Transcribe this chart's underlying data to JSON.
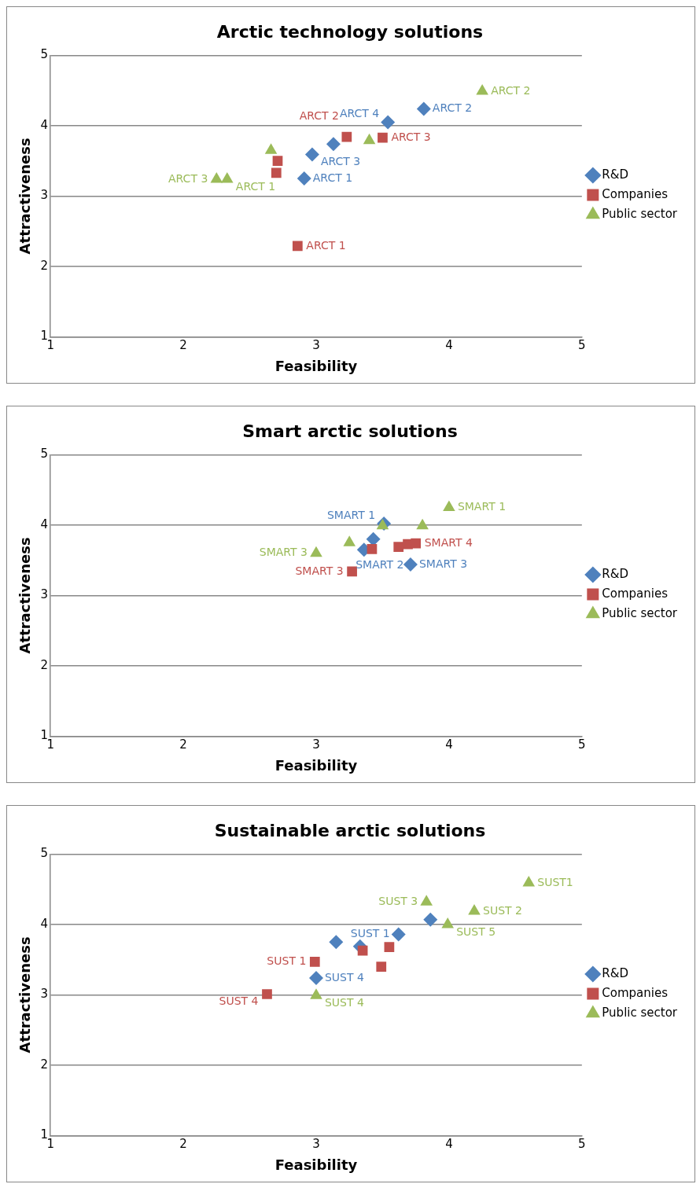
{
  "chart_data": [
    {
      "type": "scatter",
      "title": "Arctic technology solutions",
      "xlabel": "Feasibility",
      "ylabel": "Attractiveness",
      "xlim": [
        1,
        5
      ],
      "xticks": [
        1,
        2,
        3,
        4,
        5
      ],
      "ylim": [
        1,
        5
      ],
      "yticks": [
        1,
        2,
        3,
        4,
        5
      ],
      "grid": "y",
      "legend": "right",
      "series": [
        {
          "name": "R&D",
          "color": "#4f81bd",
          "marker": "diamond",
          "x": [
            3.81,
            3.54,
            3.13,
            2.97,
            2.91
          ],
          "values": [
            4.24,
            4.05,
            3.74,
            3.59,
            3.25
          ],
          "value_labels": [
            "ARCT 2",
            "ARCT 4",
            null,
            "ARCT 3",
            "ARCT 1"
          ]
        },
        {
          "name": "Companies",
          "color": "#c0504d",
          "marker": "square",
          "x": [
            3.23,
            3.5,
            2.71,
            2.7,
            2.86
          ],
          "values": [
            3.84,
            3.83,
            3.5,
            3.33,
            2.29
          ],
          "value_labels": [
            "ARCT 2",
            "ARCT 3",
            null,
            null,
            "ARCT 1"
          ]
        },
        {
          "name": "Public sector",
          "color": "#9bbb59",
          "marker": "triangle",
          "x": [
            4.25,
            2.66,
            3.4,
            2.25,
            2.33
          ],
          "values": [
            4.49,
            3.65,
            3.79,
            3.24,
            3.24
          ],
          "value_labels": [
            "ARCT 2",
            null,
            null,
            "ARCT 3",
            "ARCT 1"
          ]
        }
      ]
    },
    {
      "type": "scatter",
      "title": "Smart arctic solutions",
      "xlabel": "Feasibility",
      "ylabel": "Attractiveness",
      "xlim": [
        1,
        5
      ],
      "xticks": [
        1,
        2,
        3,
        4,
        5
      ],
      "ylim": [
        1,
        5
      ],
      "yticks": [
        1,
        2,
        3,
        4,
        5
      ],
      "grid": "y",
      "legend": "right",
      "series": [
        {
          "name": "R&D",
          "color": "#4f81bd",
          "marker": "diamond",
          "x": [
            3.51,
            3.43,
            3.36,
            3.71
          ],
          "values": [
            4.02,
            3.8,
            3.65,
            3.44
          ],
          "value_labels": [
            "SMART 1",
            null,
            "SMART 2",
            "SMART 3"
          ]
        },
        {
          "name": "Companies",
          "color": "#c0504d",
          "marker": "square",
          "x": [
            3.42,
            3.62,
            3.69,
            3.75,
            3.27
          ],
          "values": [
            3.66,
            3.69,
            3.73,
            3.74,
            3.34
          ],
          "value_labels": [
            null,
            null,
            null,
            "SMART 4",
            "SMART 3"
          ]
        },
        {
          "name": "Public sector",
          "color": "#9bbb59",
          "marker": "triangle",
          "x": [
            4.0,
            3.8,
            3.5,
            3.25,
            3.0
          ],
          "values": [
            4.25,
            3.99,
            3.99,
            3.75,
            3.6
          ],
          "value_labels": [
            "SMART 1",
            null,
            null,
            null,
            "SMART 3"
          ]
        }
      ]
    },
    {
      "type": "scatter",
      "title": "Sustainable arctic solutions",
      "xlabel": "Feasibility",
      "ylabel": "Attractiveness",
      "xlim": [
        1,
        5
      ],
      "xticks": [
        1,
        2,
        3,
        4,
        5
      ],
      "ylim": [
        1,
        5
      ],
      "yticks": [
        1,
        2,
        3,
        4,
        5
      ],
      "grid": "y",
      "legend": "right",
      "series": [
        {
          "name": "R&D",
          "color": "#4f81bd",
          "marker": "diamond",
          "x": [
            3.86,
            3.62,
            3.15,
            3.33,
            3.0
          ],
          "values": [
            4.07,
            3.86,
            3.75,
            3.69,
            3.24
          ],
          "value_labels": [
            null,
            "SUST 1",
            null,
            null,
            "SUST 4"
          ]
        },
        {
          "name": "Companies",
          "color": "#c0504d",
          "marker": "square",
          "x": [
            2.99,
            3.35,
            3.55,
            3.49,
            2.63
          ],
          "values": [
            3.47,
            3.63,
            3.68,
            3.4,
            3.01
          ],
          "value_labels": [
            "SUST 1",
            null,
            null,
            null,
            "SUST 4"
          ]
        },
        {
          "name": "Public sector",
          "color": "#9bbb59",
          "marker": "triangle",
          "x": [
            4.6,
            3.83,
            4.19,
            3.99,
            3.0
          ],
          "values": [
            4.59,
            4.32,
            4.19,
            4.0,
            2.99
          ],
          "value_labels": [
            "SUST1",
            "SUST 3",
            "SUST 2",
            "SUST 5",
            "SUST 4"
          ]
        }
      ]
    }
  ]
}
